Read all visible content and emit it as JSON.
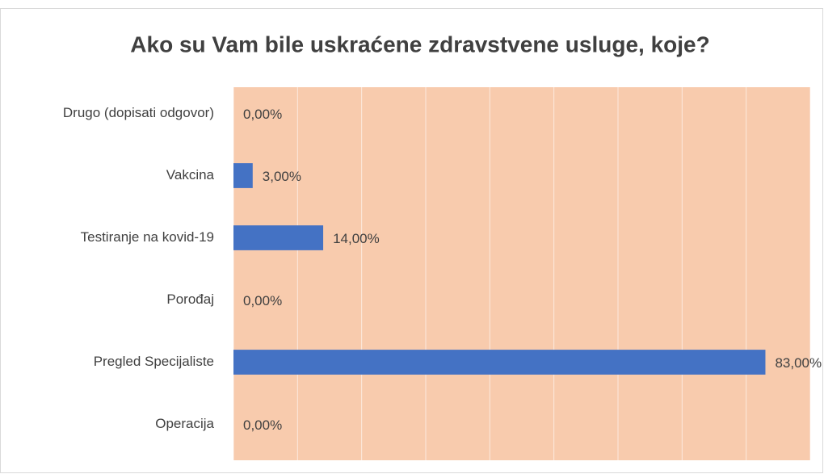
{
  "chart_data": {
    "type": "barh",
    "title": "Ako su Vam bile uskraćene zdravstvene usluge, koje?",
    "categories": [
      "Drugo (dopisati odgovor)",
      "Vakcina",
      "Testiranje na kovid-19",
      "Porođaj",
      "Pregled Specijaliste",
      "Operacija"
    ],
    "values": [
      0,
      3,
      14,
      0,
      83,
      0
    ],
    "value_labels": [
      "0,00%",
      "3,00%",
      "14,00%",
      "0,00%",
      "83,00%",
      "0,00%"
    ],
    "color": "#4472c4",
    "plot_background": "#f8cbad",
    "xlim": [
      0,
      90
    ],
    "xticks": [
      0,
      10,
      20,
      30,
      40,
      50,
      60,
      70,
      80,
      90
    ],
    "grid": true
  }
}
